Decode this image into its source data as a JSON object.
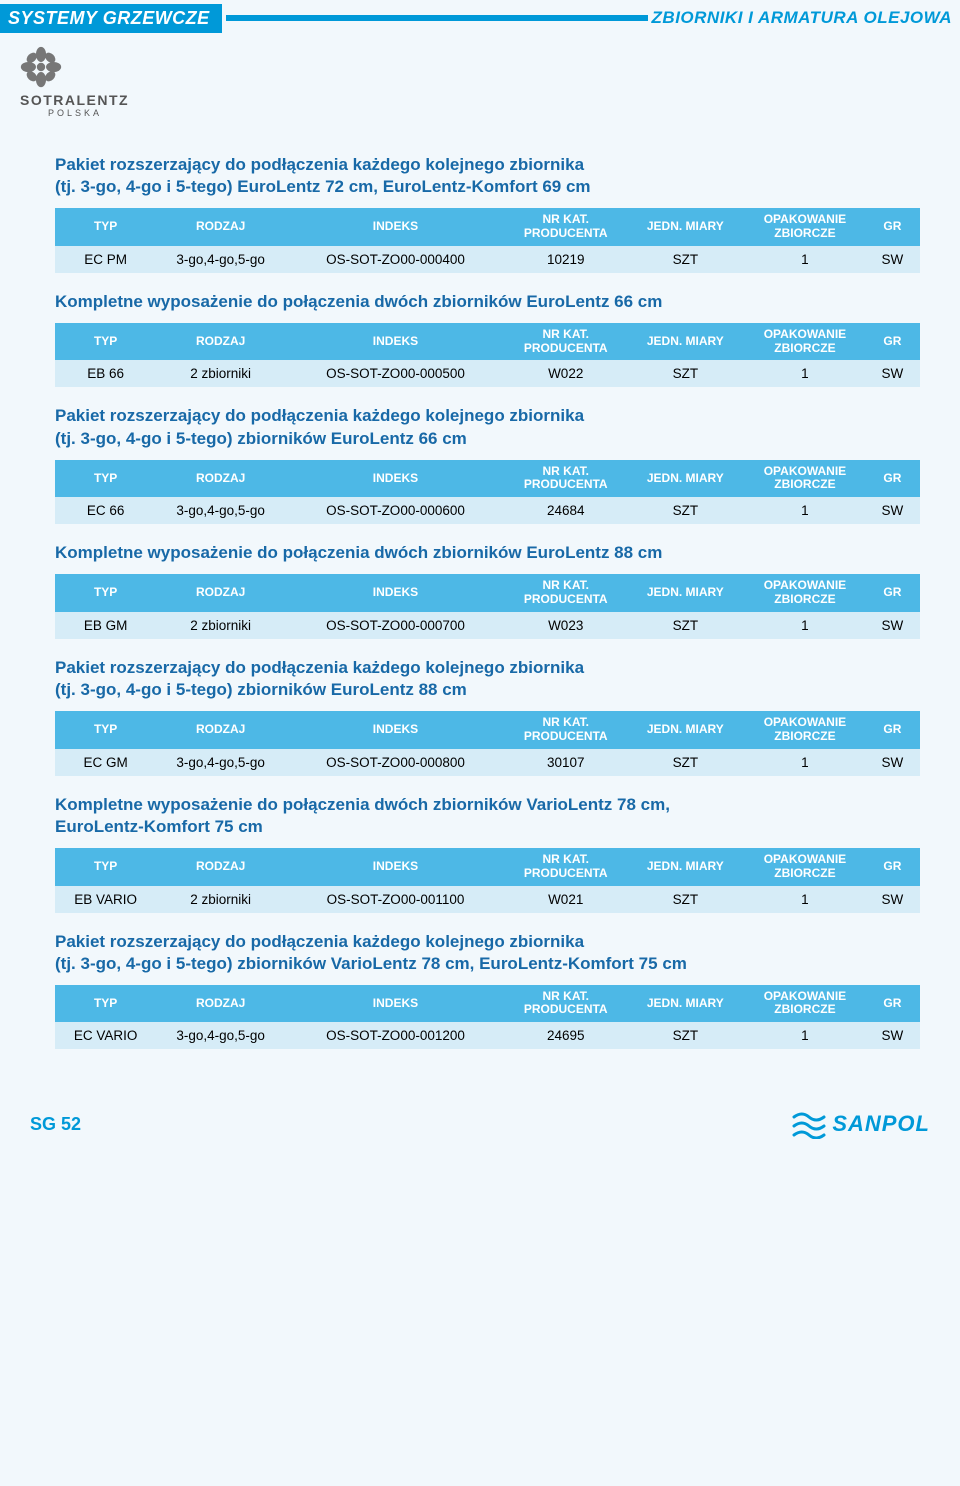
{
  "header": {
    "left": "SYSTEMY GRZEWCZE",
    "right": "ZBIORNIKI I ARMATURA OLEJOWA"
  },
  "logo": {
    "brand": "SOTRALENTZ",
    "country": "POLSKA"
  },
  "columns": {
    "typ": "TYP",
    "rodzaj": "RODZAJ",
    "indeks": "INDEKS",
    "nrkat_line1": "NR KAT.",
    "nrkat_line2": "PRODUCENTA",
    "jedn": "JEDN. MIARY",
    "opak_line1": "OPAKOWANIE",
    "opak_line2": "ZBIORCZE",
    "gr": "GR"
  },
  "sections": [
    {
      "title": "Pakiet rozszerzający do podłączenia każdego kolejnego zbiornika\n(tj. 3-go, 4-go i 5-tego) EuroLentz 72 cm, EuroLentz-Komfort 69 cm",
      "row": {
        "typ": "EC PM",
        "rodzaj": "3-go,4-go,5-go",
        "indeks": "OS-SOT-ZO00-000400",
        "nrkat": "10219",
        "jedn": "SZT",
        "opak": "1",
        "gr": "SW"
      }
    },
    {
      "title": "Kompletne wyposażenie do połączenia dwóch zbiorników EuroLentz 66 cm",
      "row": {
        "typ": "EB 66",
        "rodzaj": "2 zbiorniki",
        "indeks": "OS-SOT-ZO00-000500",
        "nrkat": "W022",
        "jedn": "SZT",
        "opak": "1",
        "gr": "SW"
      }
    },
    {
      "title": "Pakiet rozszerzający do podłączenia każdego kolejnego zbiornika\n(tj. 3-go, 4-go i 5-tego) zbiorników EuroLentz 66 cm",
      "row": {
        "typ": "EC 66",
        "rodzaj": "3-go,4-go,5-go",
        "indeks": "OS-SOT-ZO00-000600",
        "nrkat": "24684",
        "jedn": "SZT",
        "opak": "1",
        "gr": "SW"
      }
    },
    {
      "title": "Kompletne wyposażenie do połączenia dwóch zbiorników EuroLentz 88 cm",
      "row": {
        "typ": "EB GM",
        "rodzaj": "2 zbiorniki",
        "indeks": "OS-SOT-ZO00-000700",
        "nrkat": "W023",
        "jedn": "SZT",
        "opak": "1",
        "gr": "SW"
      }
    },
    {
      "title": "Pakiet rozszerzający do podłączenia każdego kolejnego zbiornika\n(tj. 3-go, 4-go i 5-tego) zbiorników EuroLentz 88 cm",
      "row": {
        "typ": "EC GM",
        "rodzaj": "3-go,4-go,5-go",
        "indeks": "OS-SOT-ZO00-000800",
        "nrkat": "30107",
        "jedn": "SZT",
        "opak": "1",
        "gr": "SW"
      }
    },
    {
      "title": "Kompletne wyposażenie do połączenia dwóch zbiorników VarioLentz 78 cm,\nEuroLentz-Komfort 75 cm",
      "row": {
        "typ": "EB VARIO",
        "rodzaj": "2 zbiorniki",
        "indeks": "OS-SOT-ZO00-001100",
        "nrkat": "W021",
        "jedn": "SZT",
        "opak": "1",
        "gr": "SW"
      }
    },
    {
      "title": "Pakiet rozszerzający do podłączenia każdego kolejnego zbiornika\n(tj. 3-go, 4-go i 5-tego) zbiorników VarioLentz 78 cm, EuroLentz-Komfort 75 cm",
      "row": {
        "typ": "EC VARIO",
        "rodzaj": "3-go,4-go,5-go",
        "indeks": "OS-SOT-ZO00-001200",
        "nrkat": "24695",
        "jedn": "SZT",
        "opak": "1",
        "gr": "SW"
      }
    }
  ],
  "footer": {
    "page": "SG 52",
    "brand": "SANPOL"
  },
  "colors": {
    "brand_blue": "#0099d8",
    "title_blue": "#1869a7",
    "th_bg": "#4db8e6",
    "td_bg": "#d6ecf7",
    "page_bg": "#f2f8fc"
  }
}
